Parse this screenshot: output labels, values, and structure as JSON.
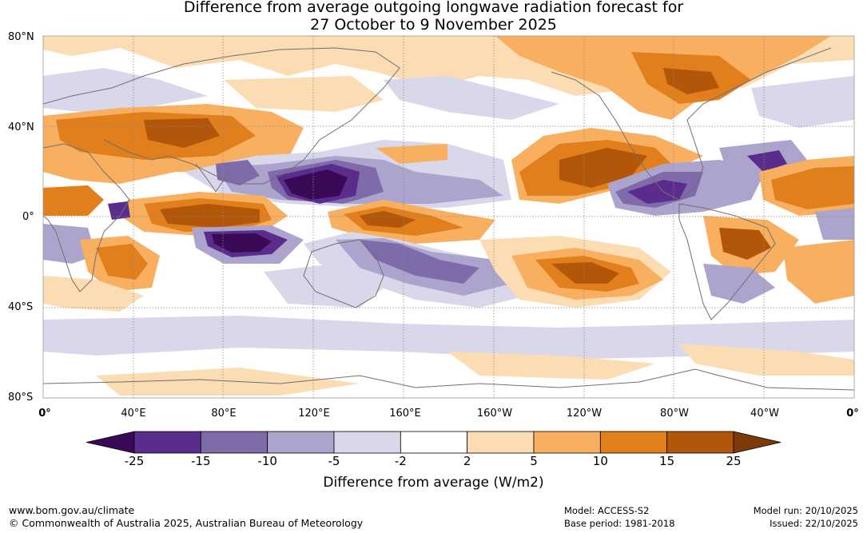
{
  "title": {
    "line1": "Difference from average outgoing longwave radiation forecast for",
    "line2": "27 October to 9 November 2025"
  },
  "map": {
    "lat_labels": [
      "80°N",
      "40°N",
      "0°",
      "40°S",
      "80°S"
    ],
    "lon_labels": [
      "0°",
      "40°E",
      "80°E",
      "120°E",
      "160°E",
      "160°W",
      "120°W",
      "80°W",
      "40°W",
      "0°"
    ]
  },
  "legend": {
    "title": "Difference from average (W/m2)",
    "ticks": [
      "-25",
      "-15",
      "-10",
      "-5",
      "-2",
      "2",
      "5",
      "10",
      "15",
      "25"
    ],
    "colors": [
      "#3a0a57",
      "#5a2d8c",
      "#7f6aaa",
      "#aca4cd",
      "#d8d8ea",
      "#ffffff",
      "#fcdcb2",
      "#f8b060",
      "#e07f1c",
      "#b2560a",
      "#7c3a08"
    ]
  },
  "footer": {
    "website": "www.bom.gov.au/climate",
    "copyright": "© Commonwealth of Australia 2025, Australian Bureau of Meteorology",
    "model": "Model: ACCESS-S2",
    "base_period": "Base period: 1981-2018",
    "model_run": "Model run: 20/10/2025",
    "issued": "Issued: 22/10/2025"
  }
}
